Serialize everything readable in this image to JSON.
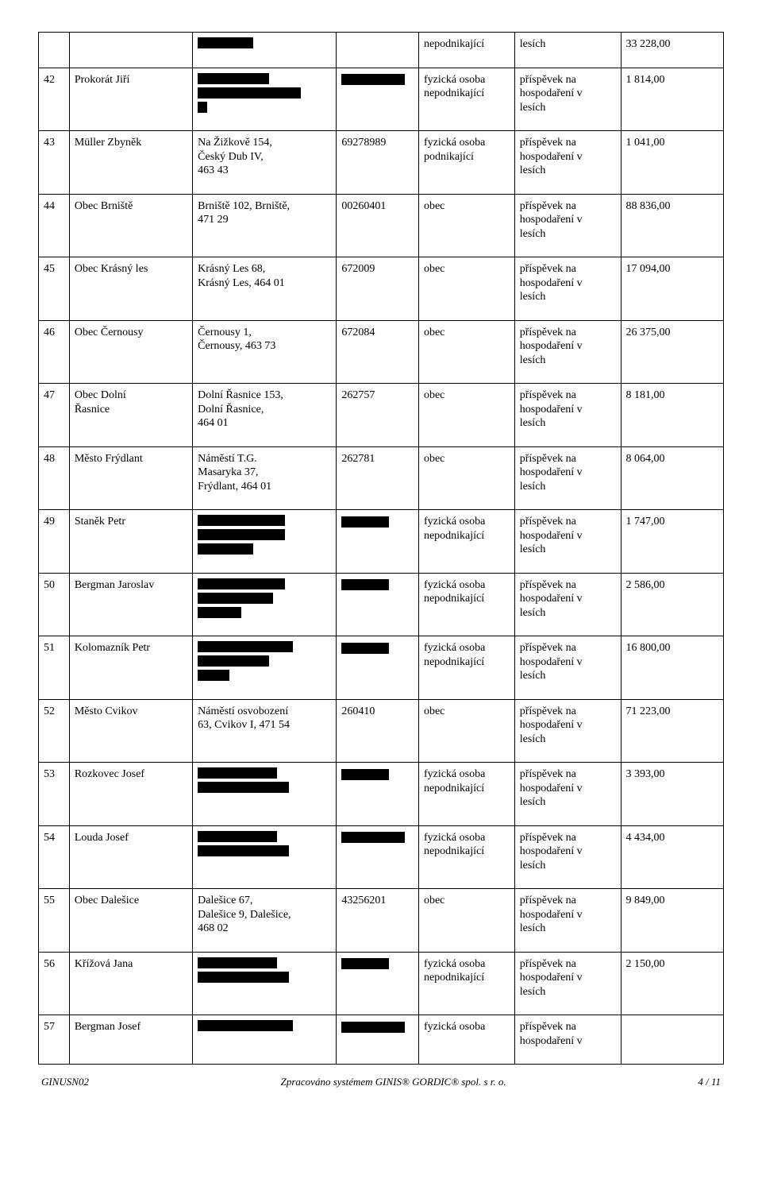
{
  "purpose_prefix": "příspěvek na",
  "purpose_mid": "hospodaření v",
  "purpose_suffix": "lesích",
  "type_fo": "fyzická osoba",
  "type_np": "nepodnikající",
  "type_pod": "podnikající",
  "type_obec": "obec",
  "partial_row": {
    "amount": "33 228,00"
  },
  "rows": [
    {
      "n": "42",
      "name": "Prokorát Jiří",
      "addr_redacted": [
        90,
        130,
        12
      ],
      "id_redacted": 80,
      "type": "fo_np",
      "amount": "1 814,00"
    },
    {
      "n": "43",
      "name": "Müller Zbyněk",
      "addr": "Na Žižkově 154,\nČeský Dub IV,\n463 43",
      "id": "69278989",
      "type": "fo_pod",
      "amount": "1 041,00"
    },
    {
      "n": "44",
      "name": "Obec Brniště",
      "addr": "Brniště 102, Brniště,\n471 29",
      "id": "00260401",
      "type": "obec",
      "amount": "88 836,00"
    },
    {
      "n": "45",
      "name": "Obec Krásný les",
      "addr": "Krásný Les 68,\nKrásný Les, 464 01",
      "id": "672009",
      "type": "obec",
      "amount": "17 094,00"
    },
    {
      "n": "46",
      "name": "Obec Černousy",
      "addr": "Černousy 1,\nČernousy, 463 73",
      "id": "672084",
      "type": "obec",
      "amount": "26 375,00"
    },
    {
      "n": "47",
      "name": "Obec Dolní\nŘasnice",
      "addr": "Dolní Řasnice 153,\nDolní Řasnice,\n464 01",
      "id": "262757",
      "type": "obec",
      "amount": "8 181,00"
    },
    {
      "n": "48",
      "name": "Město Frýdlant",
      "addr": "Náměstí T.G.\nMasaryka 37,\nFrýdlant, 464 01",
      "id": "262781",
      "type": "obec",
      "amount": "8 064,00"
    },
    {
      "n": "49",
      "name": "Staněk Petr",
      "addr_redacted": [
        110,
        110,
        70
      ],
      "id_redacted": 60,
      "type": "fo_np",
      "amount": "1 747,00"
    },
    {
      "n": "50",
      "name": "Bergman Jaroslav",
      "addr_redacted": [
        110,
        95,
        55
      ],
      "id_redacted": 60,
      "type": "fo_np",
      "amount": "2 586,00"
    },
    {
      "n": "51",
      "name": "Kolomazník Petr",
      "addr_redacted": [
        120,
        90,
        40
      ],
      "id_redacted": 60,
      "type": "fo_np",
      "amount": "16 800,00"
    },
    {
      "n": "52",
      "name": "Město Cvikov",
      "addr": "Náměstí osvobození\n63, Cvikov I, 471 54",
      "id": "260410",
      "type": "obec",
      "amount": "71 223,00"
    },
    {
      "n": "53",
      "name": "Rozkovec Josef",
      "addr_redacted": [
        100,
        115
      ],
      "id_redacted": 60,
      "type": "fo_np",
      "amount": "3 393,00"
    },
    {
      "n": "54",
      "name": "Louda Josef",
      "addr_redacted": [
        100,
        115
      ],
      "id_redacted": 80,
      "type": "fo_np",
      "amount": "4 434,00"
    },
    {
      "n": "55",
      "name": "Obec Dalešice",
      "addr": "Dalešice 67,\nDalešice 9, Dalešice,\n468 02",
      "id": "43256201",
      "type": "obec",
      "amount": "9 849,00"
    },
    {
      "n": "56",
      "name": "Křížová Jana",
      "addr_redacted": [
        100,
        115
      ],
      "id_redacted": 60,
      "type": "fo_np",
      "amount": "2 150,00"
    },
    {
      "n": "57",
      "name": "Bergman Josef",
      "addr_redacted": [
        120
      ],
      "id_redacted": 80,
      "type": "fo_partial",
      "amount": ""
    }
  ],
  "footer": {
    "left": "GINUSN02",
    "mid": "Zpracováno systémem GINIS® GORDIC® spol. s r. o.",
    "right": "4 / 11"
  }
}
